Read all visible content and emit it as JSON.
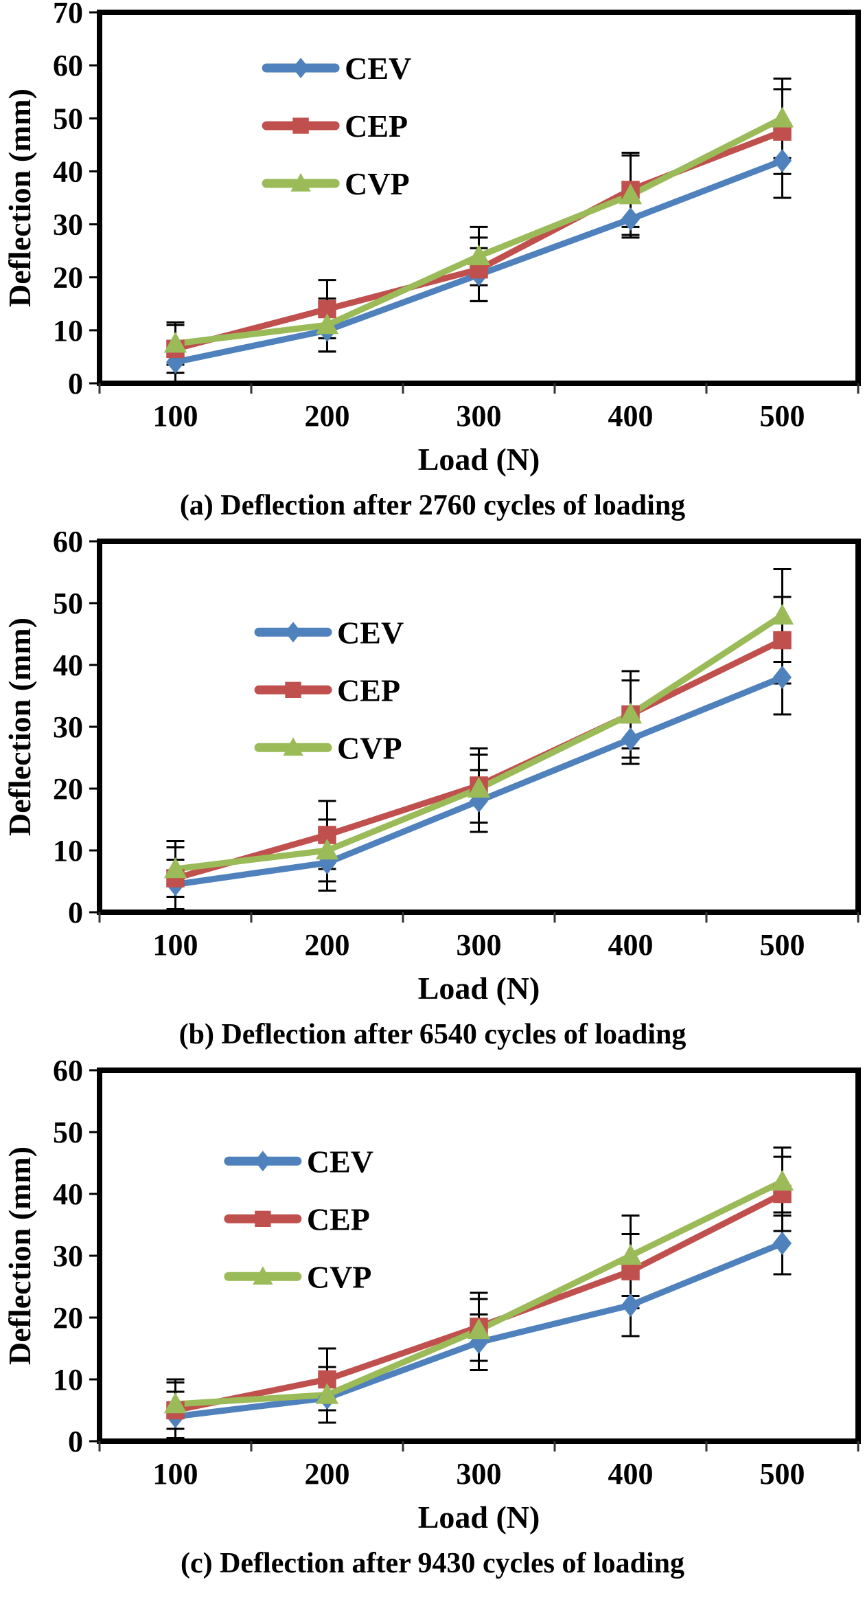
{
  "colors": {
    "cev": "#4F81BD",
    "cep": "#C0504D",
    "cvp": "#9BBB59",
    "axis": "#000000",
    "error_bar": "#000000",
    "tick_mark": "#333333",
    "text": "#000000"
  },
  "chart_data": [
    {
      "type": "line",
      "caption": "(a) Deflection after 2760 cycles of loading",
      "xlabel": "Load (N)",
      "ylabel": "Deflection (mm)",
      "ymin": 0,
      "ymax": 70,
      "ytick_step": 10,
      "ytick_labels": [
        "0",
        "10",
        "20",
        "30",
        "40",
        "50",
        "60",
        "70"
      ],
      "categories": [
        "100",
        "200",
        "300",
        "400",
        "500"
      ],
      "grid": false,
      "legend_position": "inside-upper-middle",
      "series": [
        {
          "name": "CEV",
          "marker": "diamond",
          "color_key": "cev",
          "values": [
            4,
            10,
            20.5,
            31,
            42
          ],
          "errors": [
            4,
            4,
            5,
            3.5,
            7
          ]
        },
        {
          "name": "CEP",
          "marker": "square",
          "color_key": "cep",
          "values": [
            6.5,
            14,
            21.5,
            36.5,
            47.5
          ],
          "errors": [
            4.5,
            5.5,
            6,
            7,
            8
          ]
        },
        {
          "name": "CVP",
          "marker": "triangle",
          "color_key": "cvp",
          "values": [
            7.5,
            11,
            24,
            35.5,
            50
          ],
          "errors": [
            4,
            5,
            5.5,
            7.5,
            7.5
          ]
        }
      ]
    },
    {
      "type": "line",
      "caption": "(b) Deflection after 6540 cycles of loading",
      "xlabel": "Load (N)",
      "ylabel": "Deflection (mm)",
      "ymin": 0,
      "ymax": 60,
      "ytick_step": 10,
      "ytick_labels": [
        "0",
        "10",
        "20",
        "30",
        "40",
        "50",
        "60"
      ],
      "categories": [
        "100",
        "200",
        "300",
        "400",
        "500"
      ],
      "grid": false,
      "legend_position": "inside-upper-middle",
      "series": [
        {
          "name": "CEV",
          "marker": "diamond",
          "color_key": "cev",
          "values": [
            4.5,
            8,
            18,
            28,
            38
          ],
          "errors": [
            4,
            4.5,
            5,
            4,
            6
          ]
        },
        {
          "name": "CEP",
          "marker": "square",
          "color_key": "cep",
          "values": [
            5.5,
            12.5,
            20.5,
            32,
            44
          ],
          "errors": [
            5,
            5.5,
            6,
            5.5,
            7
          ]
        },
        {
          "name": "CVP",
          "marker": "triangle",
          "color_key": "cvp",
          "values": [
            7,
            10,
            20,
            32,
            48
          ],
          "errors": [
            4.5,
            5,
            5.5,
            7,
            7.5
          ]
        }
      ]
    },
    {
      "type": "line",
      "caption": "(c) Deflection after 9430 cycles of loading",
      "xlabel": "Load (N)",
      "ylabel": "Deflection (mm)",
      "ymin": 0,
      "ymax": 60,
      "ytick_step": 10,
      "ytick_labels": [
        "0",
        "10",
        "20",
        "30",
        "40",
        "50",
        "60"
      ],
      "categories": [
        "100",
        "200",
        "300",
        "400",
        "500"
      ],
      "grid": false,
      "legend_position": "inside-upper-middle",
      "series": [
        {
          "name": "CEV",
          "marker": "diamond",
          "color_key": "cev",
          "values": [
            4,
            7,
            16,
            22,
            32
          ],
          "errors": [
            4,
            4,
            4.5,
            5,
            5
          ]
        },
        {
          "name": "CEP",
          "marker": "square",
          "color_key": "cep",
          "values": [
            5,
            10,
            18.5,
            27.5,
            40
          ],
          "errors": [
            4.5,
            5,
            5.5,
            6,
            6
          ]
        },
        {
          "name": "CVP",
          "marker": "triangle",
          "color_key": "cvp",
          "values": [
            6,
            7.5,
            18,
            30,
            42
          ],
          "errors": [
            4,
            4.5,
            5,
            6.5,
            5.5
          ]
        }
      ]
    }
  ]
}
